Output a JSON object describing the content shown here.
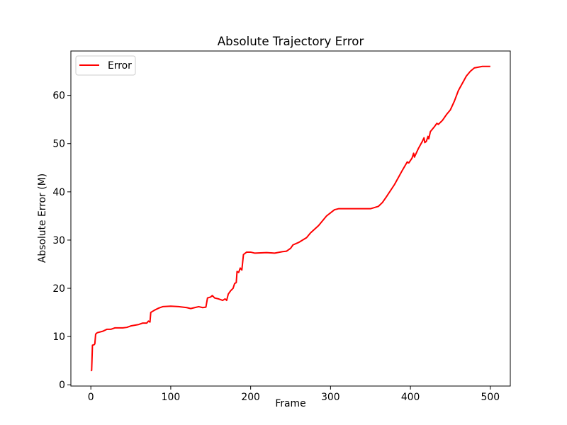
{
  "chart_data": {
    "type": "line",
    "title": "Absolute Trajectory Error",
    "xlabel": "Frame",
    "ylabel": "Absolute Error (M)",
    "x": [
      0,
      1,
      2,
      4,
      5,
      6,
      8,
      15,
      20,
      25,
      30,
      40,
      45,
      50,
      60,
      65,
      70,
      72,
      74,
      75,
      80,
      85,
      90,
      100,
      110,
      120,
      125,
      130,
      135,
      140,
      144,
      146,
      150,
      152,
      155,
      160,
      165,
      168,
      170,
      172,
      175,
      178,
      180,
      182,
      183,
      185,
      187,
      189,
      191,
      195,
      200,
      205,
      220,
      230,
      240,
      245,
      250,
      253,
      260,
      270,
      275,
      285,
      295,
      305,
      310,
      320,
      340,
      350,
      360,
      365,
      370,
      380,
      390,
      396,
      398,
      402,
      404,
      405,
      410,
      415,
      417,
      418,
      420,
      422,
      423,
      425,
      430,
      433,
      435,
      440,
      445,
      450,
      455,
      460,
      465,
      470,
      475,
      480,
      490,
      500
    ],
    "series": [
      {
        "name": "Error",
        "color": "#ff0000",
        "values": [
          2.9,
          3.0,
          8.2,
          8.3,
          8.5,
          10.5,
          10.8,
          11.1,
          11.5,
          11.5,
          11.8,
          11.8,
          11.9,
          12.2,
          12.5,
          12.8,
          12.8,
          13.2,
          13.0,
          15.0,
          15.5,
          15.9,
          16.2,
          16.3,
          16.2,
          16.0,
          15.8,
          16.0,
          16.2,
          16.0,
          16.1,
          18.0,
          18.2,
          18.5,
          18.0,
          17.8,
          17.5,
          17.8,
          17.5,
          18.8,
          19.5,
          20.0,
          21.0,
          21.2,
          23.5,
          23.3,
          24.2,
          23.8,
          27.0,
          27.5,
          27.5,
          27.3,
          27.4,
          27.3,
          27.6,
          27.7,
          28.3,
          29.0,
          29.5,
          30.5,
          31.5,
          33.0,
          35.0,
          36.3,
          36.5,
          36.5,
          36.5,
          36.5,
          37.0,
          37.8,
          39.0,
          41.5,
          44.5,
          46.2,
          46.0,
          47.0,
          48.0,
          47.2,
          49.0,
          50.5,
          51.2,
          50.2,
          50.5,
          51.5,
          51.0,
          52.5,
          53.5,
          54.2,
          54.0,
          54.8,
          56.0,
          57.0,
          58.8,
          61.0,
          62.5,
          64.0,
          65.0,
          65.7,
          66.0,
          66.0
        ]
      }
    ],
    "xlim": [
      -25,
      525
    ],
    "ylim": [
      -0.26,
      69.2
    ],
    "xticks": [
      0,
      100,
      200,
      300,
      400,
      500
    ],
    "yticks": [
      0,
      10,
      20,
      30,
      40,
      50,
      60
    ],
    "legend": "upper left",
    "grid": false
  }
}
